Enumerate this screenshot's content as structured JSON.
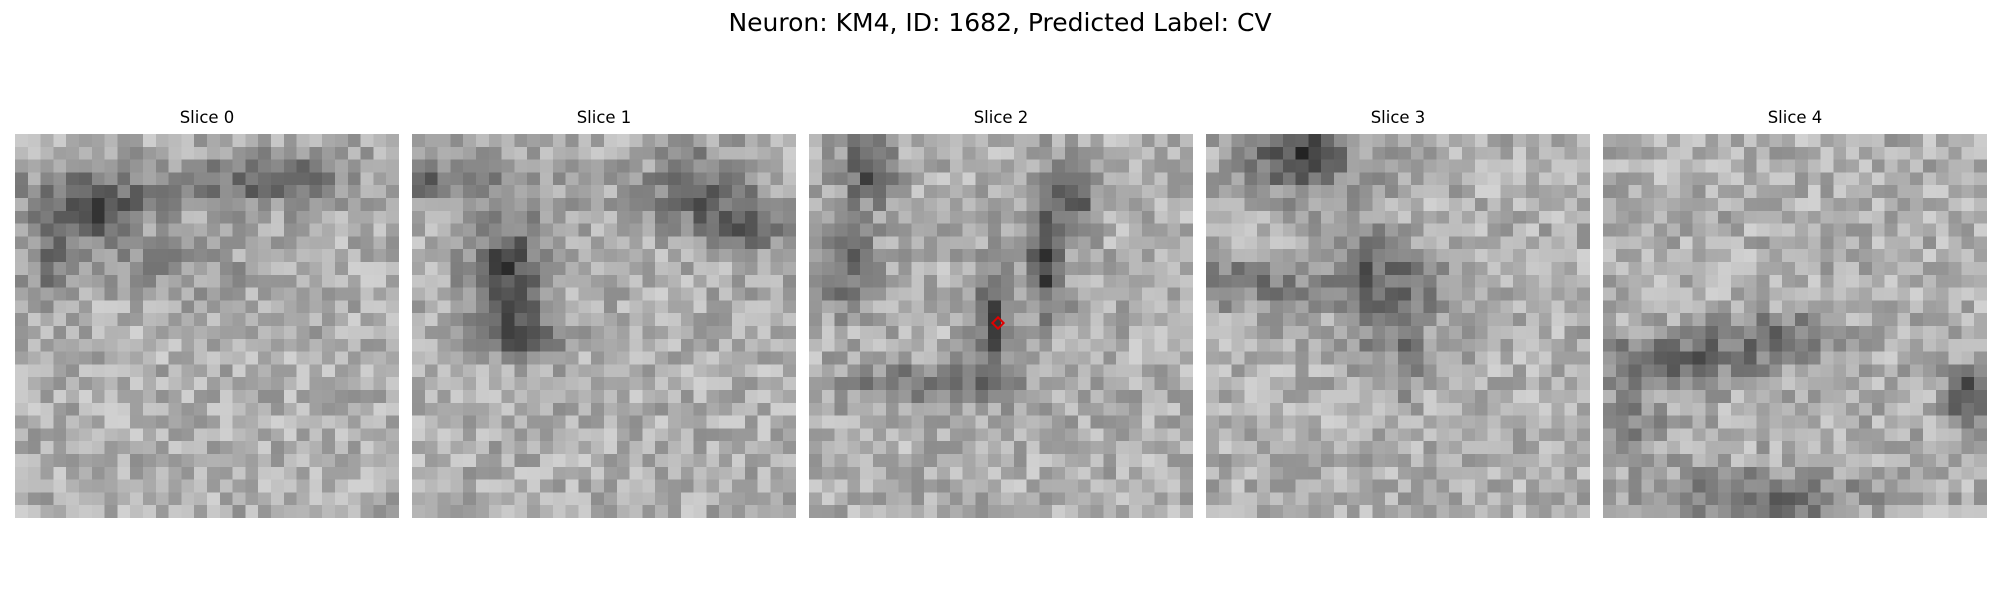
{
  "figure": {
    "title": "Neuron: KM4, ID: 1682, Predicted Label: CV"
  },
  "panels": [
    {
      "title": "Slice 0",
      "marker": false
    },
    {
      "title": "Slice 1",
      "marker": false
    },
    {
      "title": "Slice 2",
      "marker": true,
      "marker_color": "#e00000",
      "marker_shape": "diamond"
    },
    {
      "title": "Slice 3",
      "marker": false
    },
    {
      "title": "Slice 4",
      "marker": false
    }
  ],
  "colormap": "gray"
}
